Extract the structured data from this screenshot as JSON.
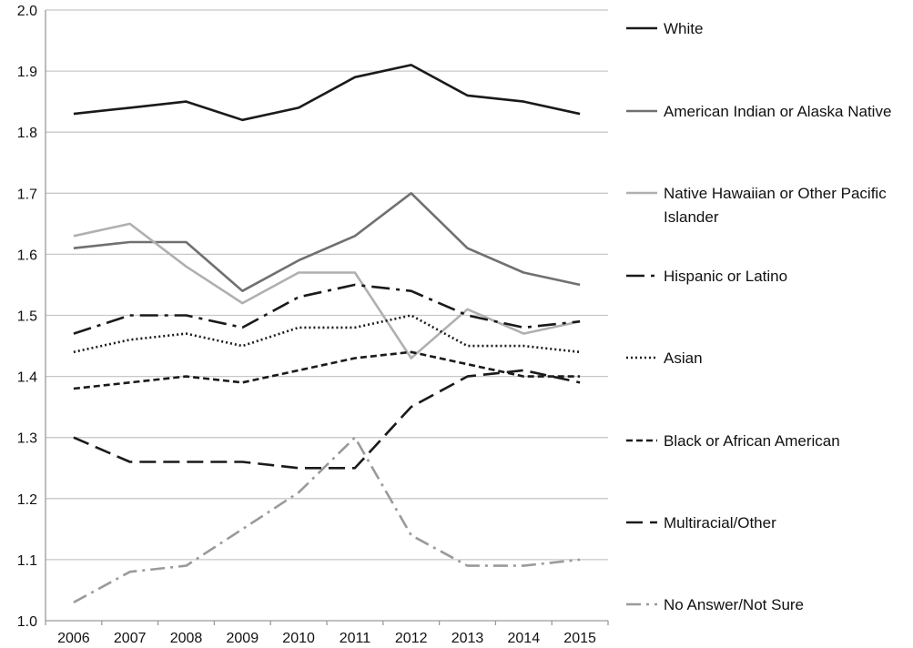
{
  "chart_data": {
    "type": "line",
    "title": "",
    "xlabel": "",
    "ylabel": "",
    "x": [
      "2006",
      "2007",
      "2008",
      "2009",
      "2010",
      "2011",
      "2012",
      "2013",
      "2014",
      "2015"
    ],
    "ylim": [
      1.0,
      2.0
    ],
    "y_ticks": [
      "1.0",
      "1.1",
      "1.2",
      "1.3",
      "1.4",
      "1.5",
      "1.6",
      "1.7",
      "1.8",
      "1.9",
      "2.0"
    ],
    "grid": "horizontal",
    "legend_position": "right",
    "series": [
      {
        "name": "White",
        "values": [
          1.83,
          1.84,
          1.85,
          1.82,
          1.84,
          1.89,
          1.91,
          1.86,
          1.85,
          1.83
        ],
        "color": "#1a1a1a",
        "style": "solid"
      },
      {
        "name": "American Indian or Alaska Native",
        "values": [
          1.61,
          1.62,
          1.62,
          1.54,
          1.59,
          1.63,
          1.7,
          1.61,
          1.57,
          1.55
        ],
        "color": "#707070",
        "style": "solid"
      },
      {
        "name": "Native Hawaiian or Other Pacific Islander",
        "values": [
          1.63,
          1.65,
          1.58,
          1.52,
          1.57,
          1.57,
          1.43,
          1.51,
          1.47,
          1.49
        ],
        "color": "#b0b0b0",
        "style": "solid"
      },
      {
        "name": "Hispanic or Latino",
        "values": [
          1.47,
          1.5,
          1.5,
          1.48,
          1.53,
          1.55,
          1.54,
          1.5,
          1.48,
          1.49
        ],
        "color": "#1a1a1a",
        "style": "long-dash-dot"
      },
      {
        "name": "Asian",
        "values": [
          1.44,
          1.46,
          1.47,
          1.45,
          1.48,
          1.48,
          1.5,
          1.45,
          1.45,
          1.44
        ],
        "color": "#1a1a1a",
        "style": "dotted"
      },
      {
        "name": "Black or African American",
        "values": [
          1.38,
          1.39,
          1.4,
          1.39,
          1.41,
          1.43,
          1.44,
          1.42,
          1.4,
          1.4
        ],
        "color": "#1a1a1a",
        "style": "dashed"
      },
      {
        "name": "Multiracial/Other",
        "values": [
          1.3,
          1.26,
          1.26,
          1.26,
          1.25,
          1.25,
          1.35,
          1.4,
          1.41,
          1.39
        ],
        "color": "#1a1a1a",
        "style": "long-dash"
      },
      {
        "name": "No Answer/Not Sure",
        "values": [
          1.03,
          1.08,
          1.09,
          1.15,
          1.21,
          1.3,
          1.14,
          1.09,
          1.09,
          1.1
        ],
        "color": "#9a9a9a",
        "style": "dash-dot"
      }
    ],
    "legend_labels": [
      [
        "White"
      ],
      [
        "American Indian or Alaska Native"
      ],
      [
        "Native Hawaiian or Other Pacific",
        "Islander"
      ],
      [
        "Hispanic or Latino"
      ],
      [
        "Asian"
      ],
      [
        "Black or African American"
      ],
      [
        "Multiracial/Other"
      ],
      [
        "No Answer/Not Sure"
      ]
    ]
  }
}
